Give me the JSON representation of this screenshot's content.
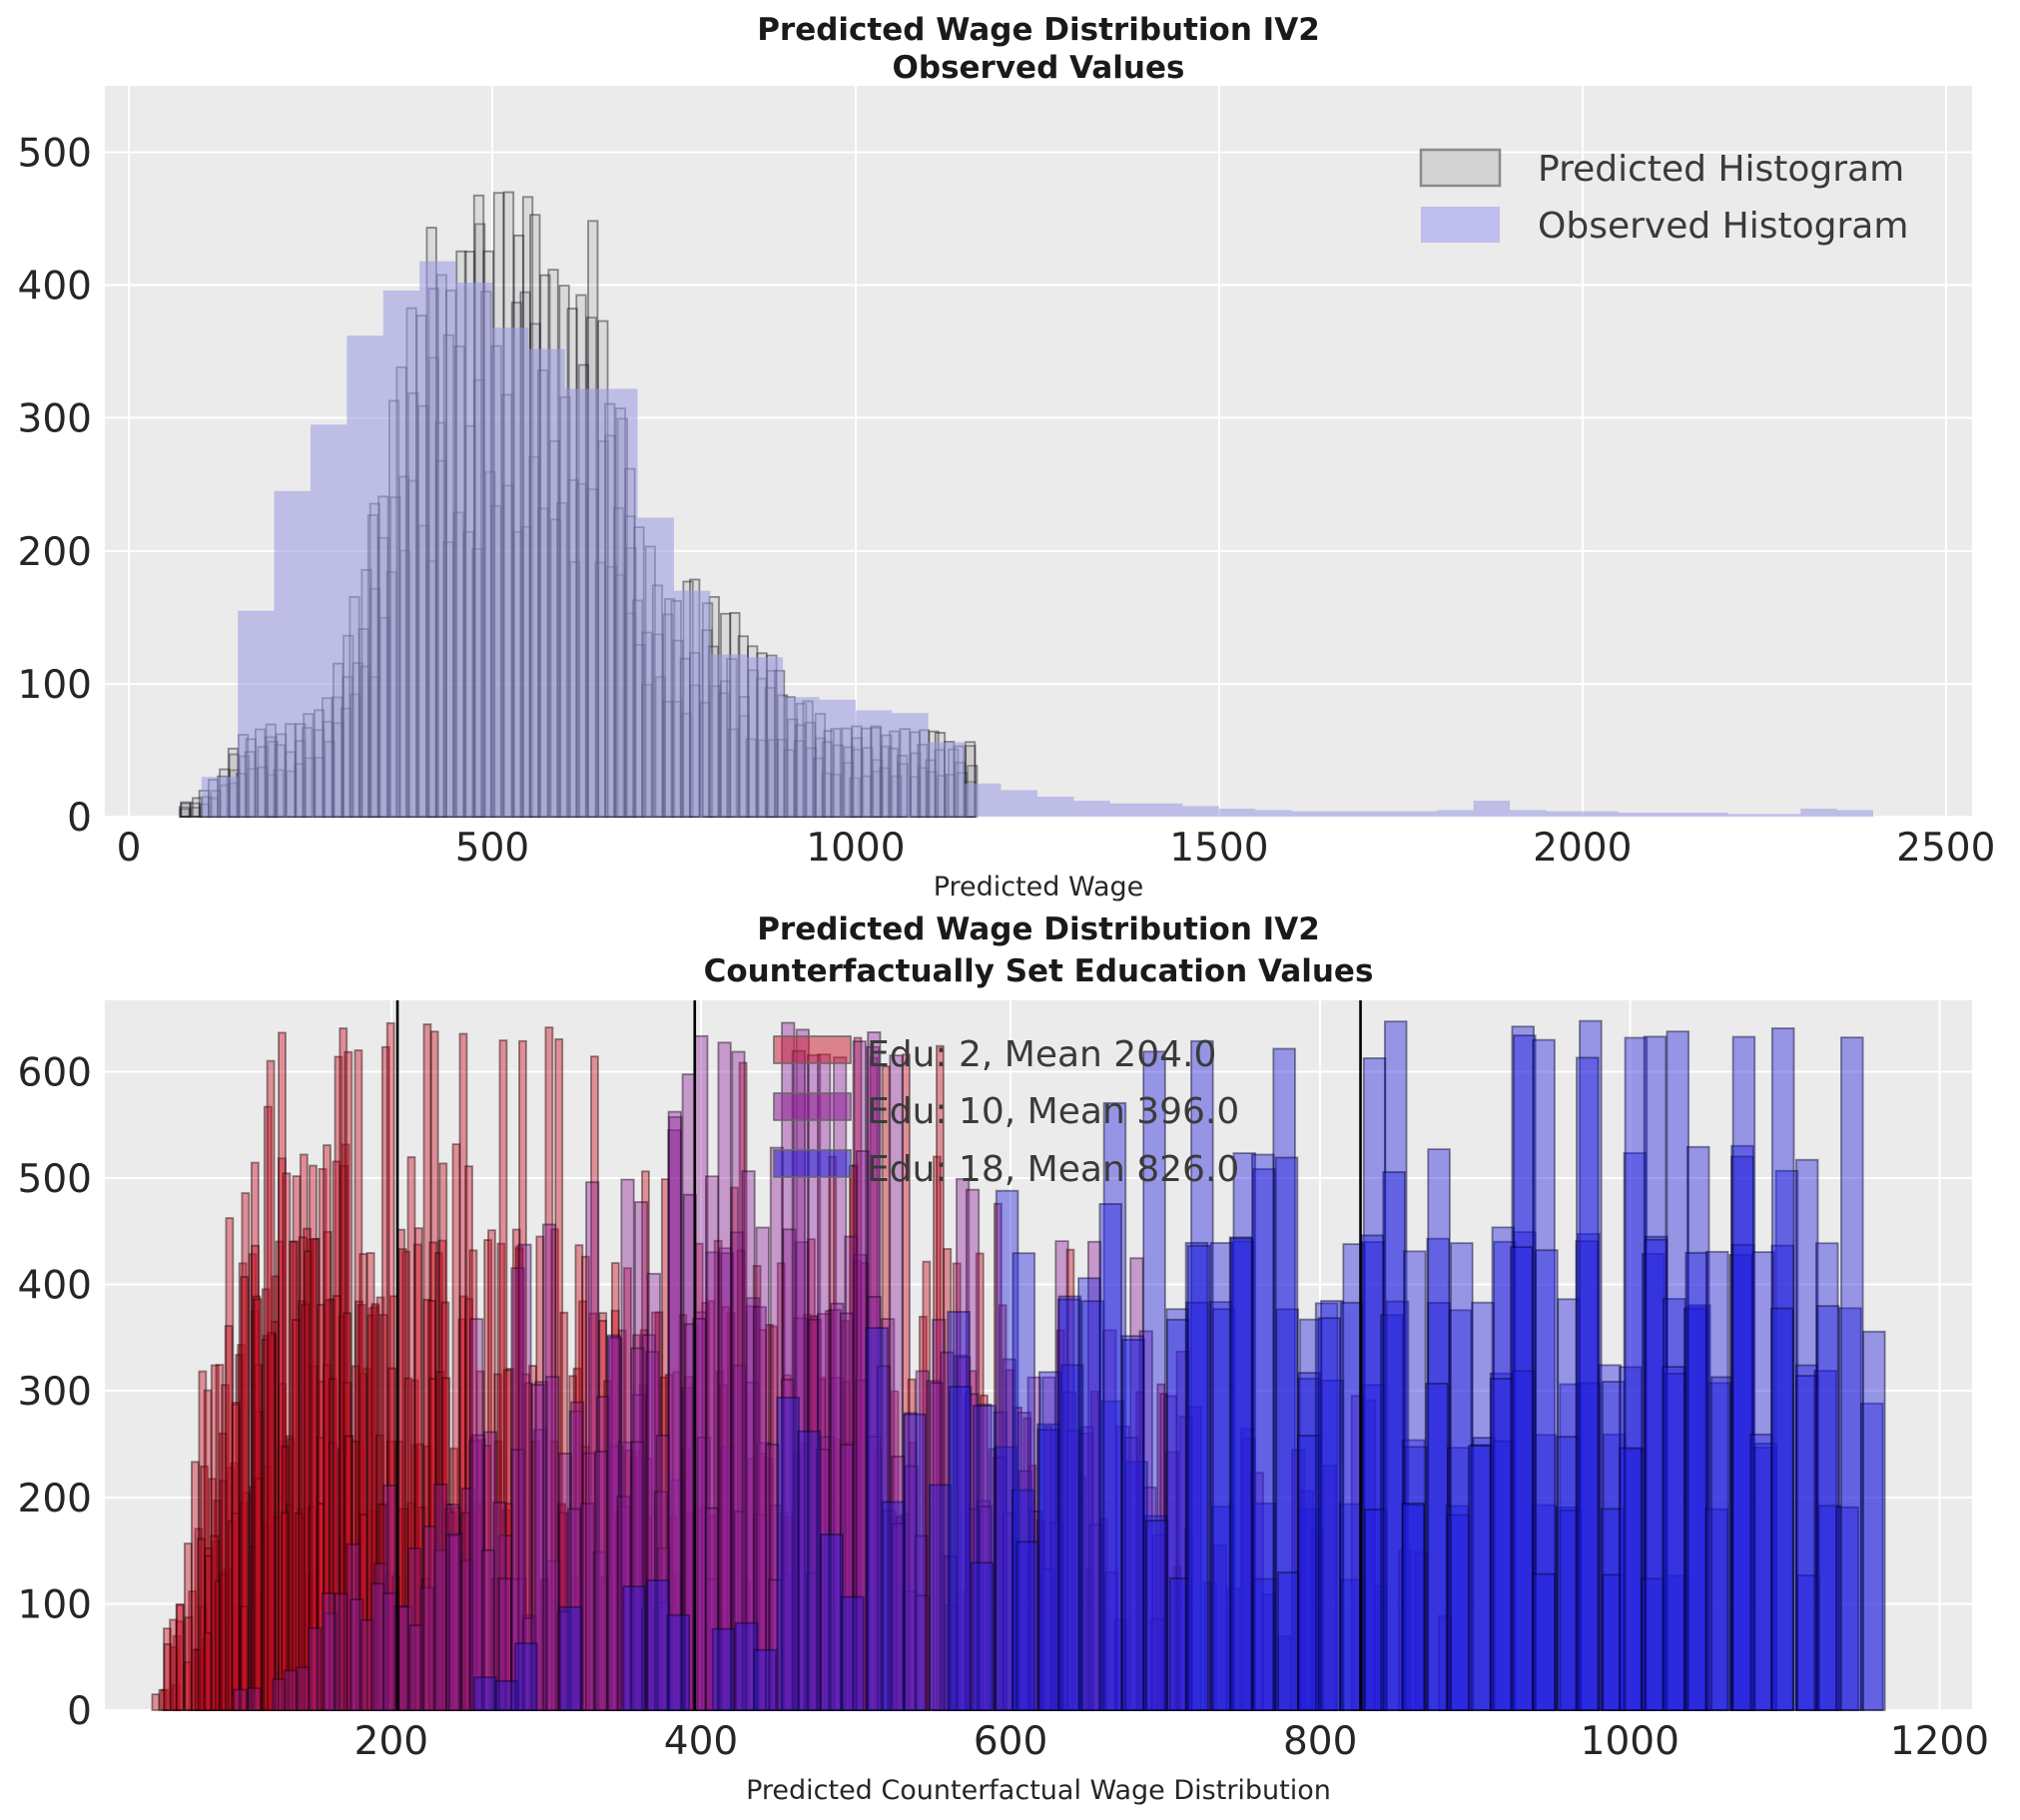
{
  "figure": {
    "bg": "#ffffff",
    "axes_bg": "#ebebeb",
    "grid_color": "#ffffff",
    "tick_color": "#262626",
    "title_color": "#1a1a1a"
  },
  "chart_data": [
    {
      "type": "histogram-overlay",
      "title_lines": [
        "Predicted Wage Distribution IV2",
        "Observed Values"
      ],
      "xlabel": "Predicted Wage",
      "x_ticks": [
        0,
        500,
        1000,
        1500,
        2000,
        2500
      ],
      "y_ticks": [
        0,
        100,
        200,
        300,
        400,
        500
      ],
      "xlim": [
        -33,
        2536
      ],
      "ylim": [
        0,
        550
      ],
      "grid": true,
      "legend_position": "upper right",
      "legend": [
        {
          "label": "Predicted Histogram",
          "swatch_fill": "#d2d2d2",
          "swatch_stroke": "#8a8a8a"
        },
        {
          "label": "Observed Histogram",
          "swatch_fill": "#bdbdee",
          "swatch_stroke": "none"
        }
      ],
      "observed_histogram": {
        "bin_start": 100,
        "bin_width": 50,
        "counts": [
          30,
          155,
          245,
          295,
          362,
          396,
          418,
          402,
          368,
          352,
          322,
          322,
          225,
          170,
          122,
          120,
          90,
          88,
          80,
          78,
          56,
          25,
          20,
          15,
          12,
          10,
          10,
          8,
          6,
          5,
          4,
          4,
          4,
          4,
          5,
          12,
          5,
          4,
          4,
          3,
          3,
          3,
          2,
          2,
          6,
          5
        ],
        "fill": "rgba(152,152,226,0.55)"
      },
      "predicted_histograms": {
        "description": "many overlapping bootstrap histograms, gray with black edges",
        "bin_width": 13,
        "range": [
          72,
          1162
        ],
        "envelope": [
          [
            70,
            8
          ],
          [
            100,
            18
          ],
          [
            130,
            40
          ],
          [
            160,
            65
          ],
          [
            200,
            70
          ],
          [
            240,
            80
          ],
          [
            270,
            95
          ],
          [
            300,
            150
          ],
          [
            330,
            210
          ],
          [
            360,
            300
          ],
          [
            390,
            430
          ],
          [
            420,
            445
          ],
          [
            450,
            450
          ],
          [
            480,
            465
          ],
          [
            510,
            515
          ],
          [
            540,
            490
          ],
          [
            570,
            470
          ],
          [
            600,
            430
          ],
          [
            620,
            380
          ],
          [
            635,
            510
          ],
          [
            650,
            400
          ],
          [
            670,
            330
          ],
          [
            690,
            260
          ],
          [
            710,
            215
          ],
          [
            730,
            190
          ],
          [
            770,
            182
          ],
          [
            810,
            170
          ],
          [
            850,
            142
          ],
          [
            890,
            118
          ],
          [
            930,
            92
          ],
          [
            960,
            72
          ],
          [
            1000,
            68
          ],
          [
            1050,
            68
          ],
          [
            1100,
            66
          ],
          [
            1140,
            62
          ],
          [
            1158,
            56
          ],
          [
            1162,
            0
          ]
        ],
        "fill": "rgba(150,150,150,0.20)",
        "edge": "rgba(15,15,25,0.45)"
      }
    },
    {
      "type": "histogram-groups",
      "title_lines": [
        "Predicted Wage Distribution IV2",
        "Counterfactually Set Education Values"
      ],
      "xlabel": "Predicted Counterfactual Wage Distribution",
      "x_ticks": [
        200,
        400,
        600,
        800,
        1000,
        1200
      ],
      "y_ticks": [
        0,
        100,
        200,
        300,
        400,
        500,
        600
      ],
      "xlim": [
        15,
        1221
      ],
      "ylim": [
        0,
        667
      ],
      "grid": true,
      "mean_line_color": "#000000",
      "legend": [
        {
          "label": "Edu: 2, Mean 204.0",
          "mean": 204,
          "swatch_fill": "rgba(205,25,45,0.50)",
          "swatch_stroke": "#666666"
        },
        {
          "label": "Edu: 10, Mean 396.0",
          "mean": 396,
          "swatch_fill": "rgba(140,30,150,0.55)",
          "swatch_stroke": "#666666"
        },
        {
          "label": "Edu: 18, Mean 826.0",
          "mean": 826,
          "swatch_fill": "rgba(40,32,220,0.55)",
          "swatch_stroke": "#666666"
        }
      ],
      "groups": [
        {
          "name": "edu-2",
          "mean": 204,
          "bin_width": 4.5,
          "fill": "rgba(205,15,35,0.42)",
          "edge": "rgba(25,0,0,0.45)",
          "envelope": [
            [
              45,
              8,
              1
            ],
            [
              52,
              40,
              2
            ],
            [
              60,
              110,
              3
            ],
            [
              68,
              200,
              4
            ],
            [
              76,
              300,
              5
            ],
            [
              84,
              380,
              5.5
            ],
            [
              92,
              430,
              6
            ],
            [
              100,
              470,
              6
            ],
            [
              110,
              520,
              6
            ],
            [
              120,
              580,
              5.5
            ],
            [
              130,
              630,
              5
            ],
            [
              160,
              630,
              5
            ],
            [
              200,
              630,
              4.5
            ],
            [
              240,
              630,
              4
            ],
            [
              280,
              630,
              3
            ],
            [
              320,
              630,
              2.5
            ],
            [
              360,
              600,
              2.2
            ],
            [
              400,
              630,
              2
            ],
            [
              440,
              600,
              1.8
            ],
            [
              480,
              630,
              1.5
            ],
            [
              520,
              600,
              1.2
            ],
            [
              560,
              630,
              1
            ],
            [
              580,
              500,
              0.9
            ],
            [
              600,
              470,
              0.8
            ],
            [
              640,
              440,
              0.7
            ],
            [
              680,
              432,
              0.6
            ],
            [
              700,
              430,
              0.5
            ],
            [
              712,
              300,
              0.3
            ],
            [
              718,
              60,
              0.2
            ],
            [
              720,
              0,
              0
            ]
          ]
        },
        {
          "name": "edu-10",
          "mean": 396,
          "bin_width": 8,
          "fill": "rgba(140,30,150,0.40)",
          "edge": "rgba(20,0,25,0.45)",
          "envelope": [
            [
              100,
              15,
              0.4
            ],
            [
              130,
              50,
              0.8
            ],
            [
              160,
              110,
              1.2
            ],
            [
              190,
              190,
              1.6
            ],
            [
              220,
              270,
              2
            ],
            [
              250,
              350,
              2.4
            ],
            [
              280,
              420,
              2.8
            ],
            [
              310,
              470,
              3.2
            ],
            [
              340,
              490,
              3.6
            ],
            [
              370,
              490,
              4
            ],
            [
              400,
              630,
              4
            ],
            [
              440,
              630,
              4
            ],
            [
              480,
              630,
              3.8
            ],
            [
              520,
              630,
              3.4
            ],
            [
              540,
              560,
              3
            ],
            [
              560,
              490,
              2.8
            ],
            [
              600,
              470,
              2.4
            ],
            [
              640,
              435,
              2
            ],
            [
              680,
              432,
              1.7
            ],
            [
              720,
              400,
              1.4
            ],
            [
              760,
              365,
              1.1
            ],
            [
              800,
              330,
              0.8
            ],
            [
              840,
              285,
              0.6
            ],
            [
              865,
              240,
              0.4
            ],
            [
              885,
              150,
              0.25
            ],
            [
              900,
              0,
              0
            ]
          ]
        },
        {
          "name": "edu-18",
          "mean": 826,
          "bin_width": 14,
          "fill": "rgba(32,28,222,0.42)",
          "edge": "rgba(0,0,35,0.45)",
          "envelope": [
            [
              225,
              35,
              0.3
            ],
            [
              260,
              75,
              0.4
            ],
            [
              300,
              120,
              0.5
            ],
            [
              340,
              170,
              0.6
            ],
            [
              380,
              215,
              0.7
            ],
            [
              420,
              260,
              0.8
            ],
            [
              460,
              300,
              0.9
            ],
            [
              500,
              350,
              1.1
            ],
            [
              540,
              400,
              1.4
            ],
            [
              570,
              450,
              1.8
            ],
            [
              600,
              500,
              2.2
            ],
            [
              630,
              540,
              2.6
            ],
            [
              660,
              575,
              3
            ],
            [
              690,
              605,
              3.4
            ],
            [
              720,
              630,
              3.8
            ],
            [
              760,
              630,
              4.2
            ],
            [
              820,
              630,
              4.6
            ],
            [
              900,
              630,
              4.8
            ],
            [
              1000,
              630,
              4.8
            ],
            [
              1080,
              630,
              4.6
            ],
            [
              1130,
              630,
              4.2
            ],
            [
              1150,
              630,
              3.5
            ],
            [
              1158,
              560,
              2
            ],
            [
              1164,
              300,
              1
            ],
            [
              1168,
              0,
              0
            ]
          ]
        }
      ]
    }
  ]
}
